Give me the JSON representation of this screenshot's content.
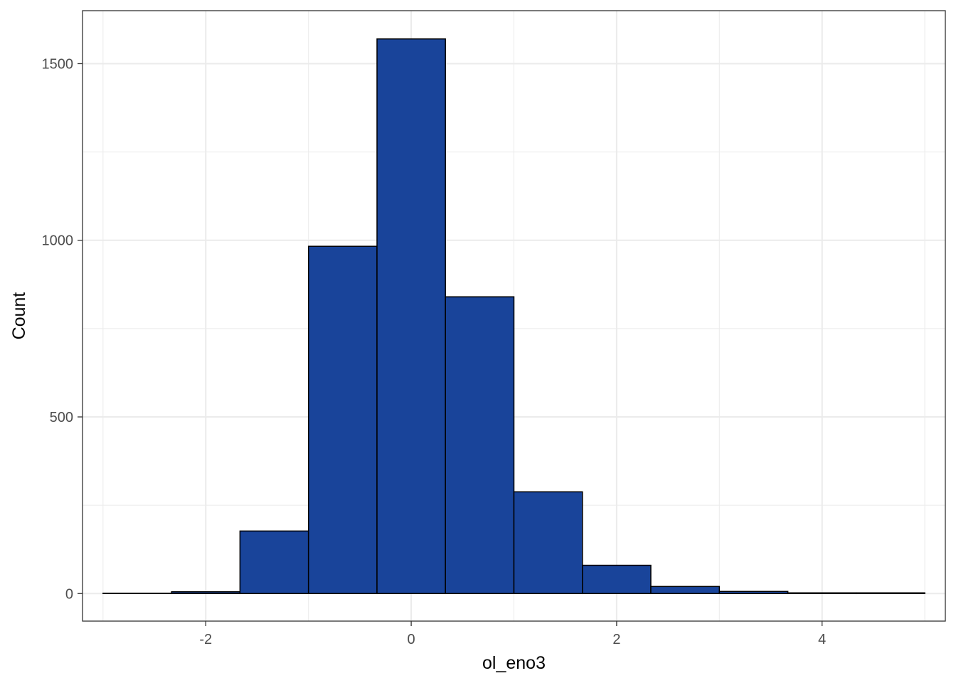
{
  "chart_data": {
    "type": "bar",
    "subtype": "histogram",
    "xlabel": "ol_eno3",
    "ylabel": "Count",
    "xlim": [
      -3.2,
      5.2
    ],
    "ylim": [
      -78,
      1650
    ],
    "x_ticks": [
      -2,
      0,
      2,
      4
    ],
    "y_ticks": [
      0,
      500,
      1000,
      1500
    ],
    "x_tick_labels": [
      "-2",
      "0",
      "2",
      "4"
    ],
    "y_tick_labels": [
      "0",
      "500",
      "1000",
      "1500"
    ],
    "grid": true,
    "bins": [
      {
        "x0": -3.0,
        "x1": -2.333,
        "count": 1
      },
      {
        "x0": -2.333,
        "x1": -1.667,
        "count": 5
      },
      {
        "x0": -1.667,
        "x1": -1.0,
        "count": 177
      },
      {
        "x0": -1.0,
        "x1": -0.333,
        "count": 983
      },
      {
        "x0": -0.333,
        "x1": 0.333,
        "count": 1570
      },
      {
        "x0": 0.333,
        "x1": 1.0,
        "count": 840
      },
      {
        "x0": 1.0,
        "x1": 1.667,
        "count": 288
      },
      {
        "x0": 1.667,
        "x1": 2.333,
        "count": 80
      },
      {
        "x0": 2.333,
        "x1": 3.0,
        "count": 20
      },
      {
        "x0": 3.0,
        "x1": 3.667,
        "count": 6
      },
      {
        "x0": 3.667,
        "x1": 4.333,
        "count": 2
      },
      {
        "x0": 4.333,
        "x1": 5.0,
        "count": 2
      }
    ],
    "colors": {
      "fill": "#19449A",
      "stroke": "#000000",
      "grid": "#EBEBEB",
      "panel_border": "#333333"
    }
  }
}
